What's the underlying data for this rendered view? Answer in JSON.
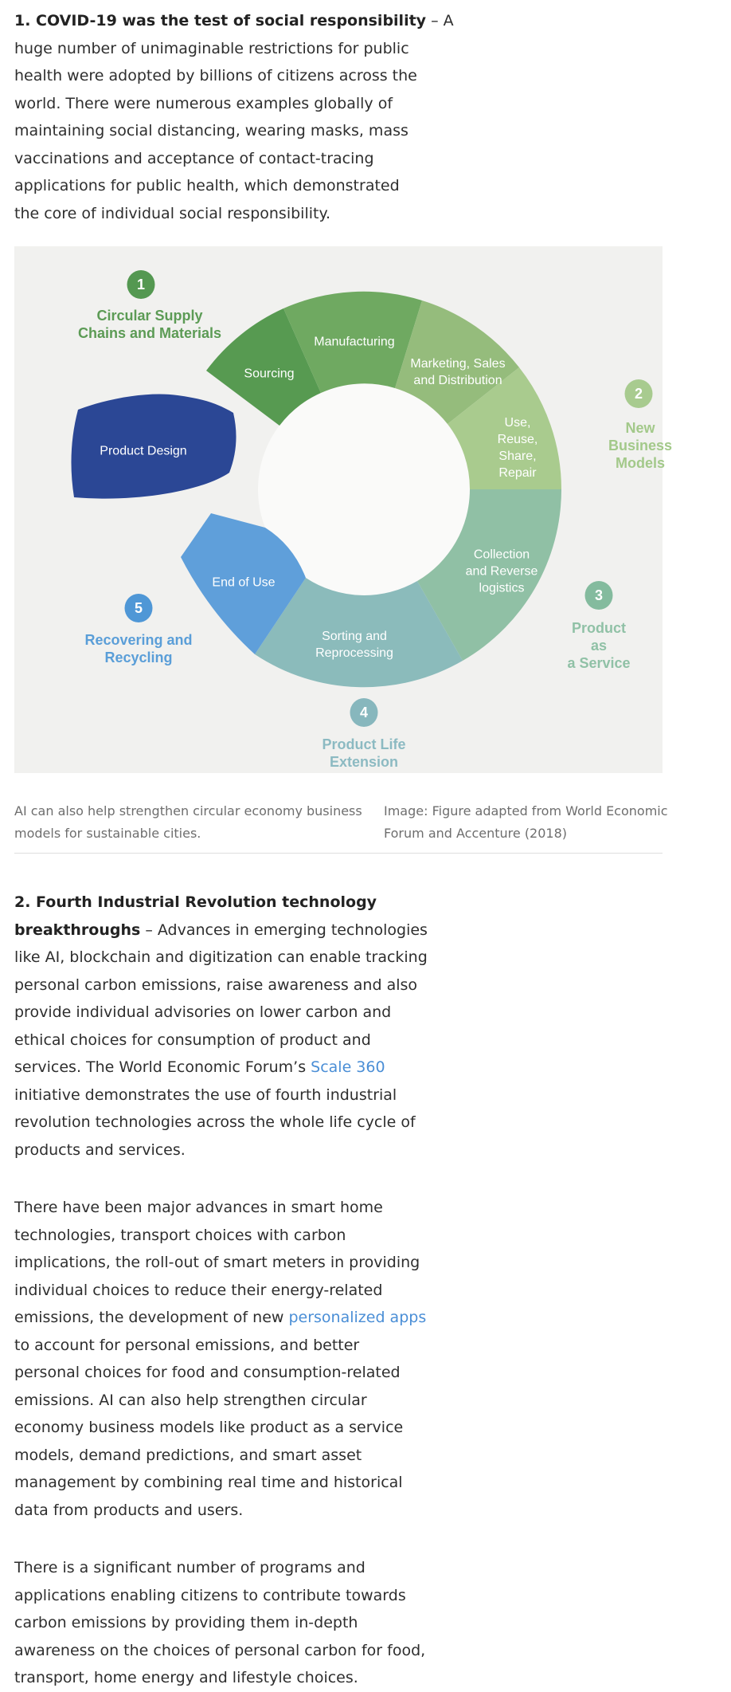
{
  "article": {
    "paragraphs": [
      {
        "segments": [
          {
            "text": "1. COVID-19 was the test of social responsibility",
            "style": "bold"
          },
          {
            "text": " – A\nhuge number of unimaginable restrictions for public\nhealth were adopted by billions of citizens across the\nworld. There were numerous examples globally of\nmaintaining social distancing, wearing masks, mass\nvaccinations and acceptance of contact-tracing\napplications for public health, which demonstrated\nthe core of individual social responsibility."
          }
        ]
      },
      {
        "segments": [
          {
            "text": "2. Fourth Industrial Revolution technology\nbreakthroughs",
            "style": "bold"
          },
          {
            "text": " – Advances in emerging technologies\nlike AI, blockchain and digitization can enable tracking\npersonal carbon emissions, raise awareness and also\nprovide individual advisories on lower carbon and\nethical choices for consumption of product and\nservices. The World Economic Forum’s "
          },
          {
            "text": "Scale 360",
            "style": "link",
            "name": "scale-360-link"
          },
          {
            "text": "\ninitiative demonstrates the use of fourth industrial\nrevolution technologies across the whole life cycle of\nproducts and services."
          }
        ]
      },
      {
        "segments": [
          {
            "text": "There have been major advances in smart home\ntechnologies, transport choices with carbon\nimplications, the roll-out of smart meters in providing\nindividual choices to reduce their energy-related\nemissions, the development of new "
          },
          {
            "text": "personalized apps",
            "style": "link",
            "name": "personalized-apps-link"
          },
          {
            "text": "\nto account for personal emissions, and better\npersonal choices for food and consumption-related\nemissions. AI can also help strengthen circular\neconomy business models like product as a service\nmodels, demand predictions, and smart asset\nmanagement by combining real time and historical\ndata from products and users."
          }
        ]
      },
      {
        "segments": [
          {
            "text": "There is a significant number of programs and\napplications enabling citizens to contribute towards\ncarbon emissions by providing them in-depth\nawareness on the choices of personal carbon for food,\ntransport, home energy and lifestyle choices."
          }
        ]
      }
    ],
    "link_color": "#4a8ed6"
  },
  "figure": {
    "background": "#f1f1ef",
    "hole_color": "#fafaf9",
    "segments": [
      {
        "label": "Sourcing",
        "color": "#579a51"
      },
      {
        "label": "Manufacturing",
        "color": "#6fa961"
      },
      {
        "label": "Marketing, Sales\nand Distribution",
        "color": "#95bc7c"
      },
      {
        "label": "Use,\nReuse,\nShare,\nRepair",
        "color": "#a9cb8e"
      },
      {
        "label": "Collection\nand Reverse\nlogistics",
        "color": "#90c0a5"
      },
      {
        "label": "Sorting and\nReprocessing",
        "color": "#8bbbbb"
      },
      {
        "label": "End of Use",
        "color": "#5f9fda"
      },
      {
        "label": "Product Design",
        "color": "#2b4795"
      }
    ],
    "badges": [
      {
        "number": "1",
        "label": "Circular Supply\nChains and Materials",
        "color": "#549851",
        "text_color": "#5c9b55"
      },
      {
        "number": "2",
        "label": "New Business\nModels",
        "color": "#a8cb8f",
        "text_color": "#a3c98a"
      },
      {
        "number": "3",
        "label": "Product as\na Service",
        "color": "#84bb9e",
        "text_color": "#90c1a6"
      },
      {
        "number": "4",
        "label": "Product Life\nExtension",
        "color": "#87b7bd",
        "text_color": "#8cbac2"
      },
      {
        "number": "5",
        "label": "Recovering and\nRecycling",
        "color": "#4f97d6",
        "text_color": "#5a9ed8"
      }
    ]
  },
  "captions": {
    "left": "AI can also help strengthen circular economy business\nmodels for sustainable cities.",
    "right": "Image: Figure adapted from World Economic\nForum and Accenture (2018)"
  }
}
